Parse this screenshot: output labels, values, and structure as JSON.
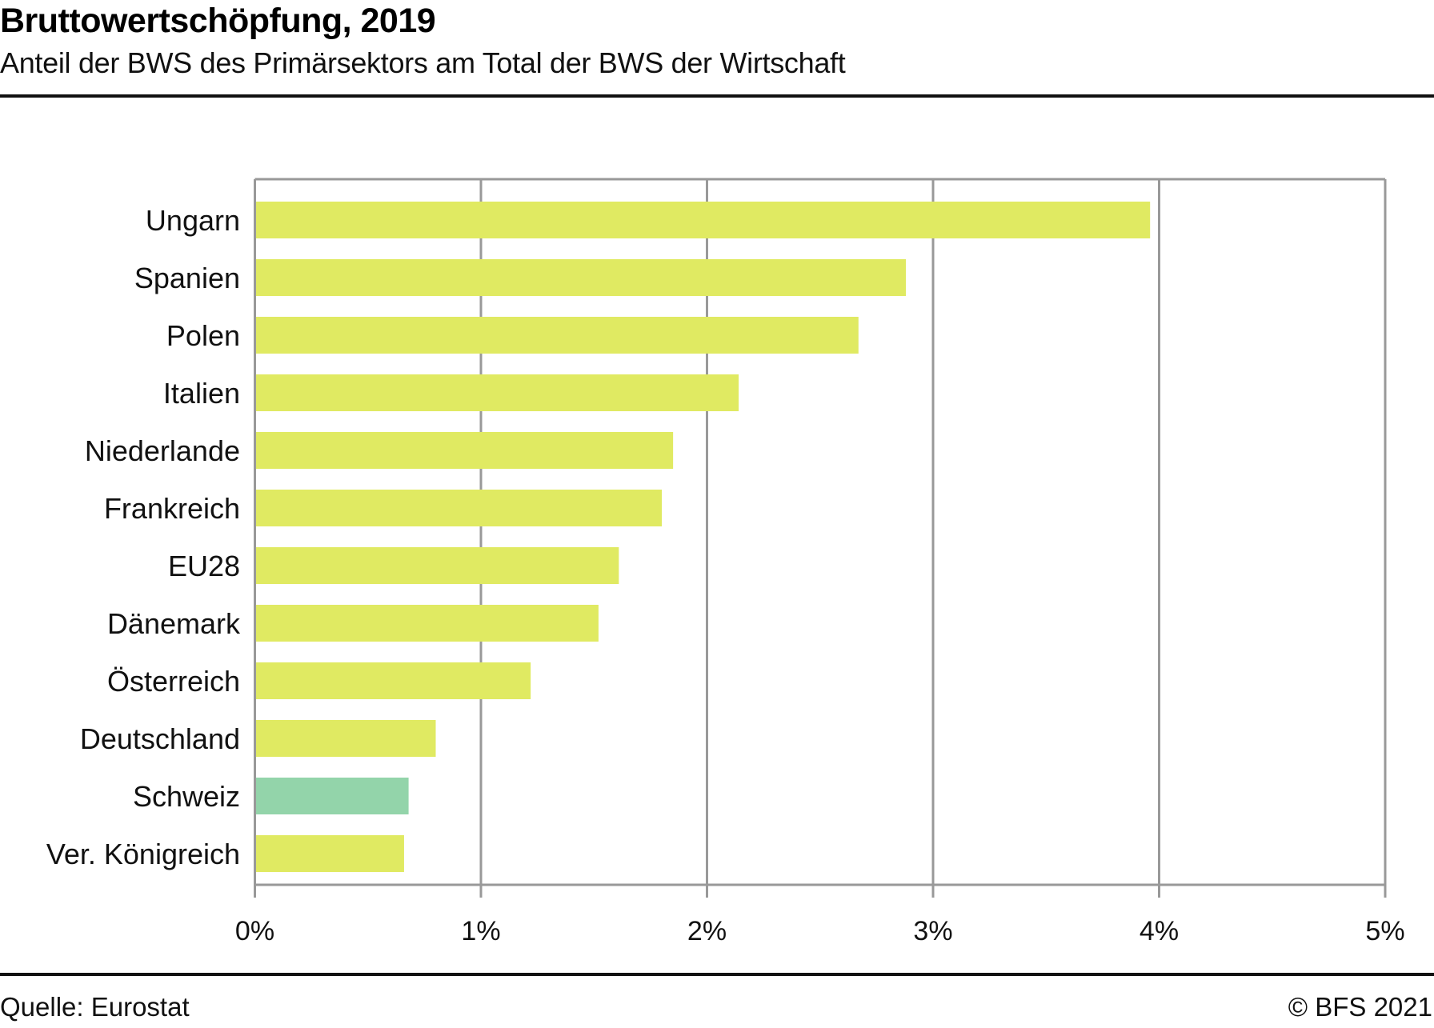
{
  "header": {
    "title": "Bruttowertschöpfung, 2019",
    "subtitle": "Anteil der BWS des Primärsektors am Total der BWS der Wirtschaft"
  },
  "footer": {
    "source": "Quelle: Eurostat",
    "copyright": "© BFS 2021"
  },
  "colors": {
    "bar": "#e0ea62",
    "highlight": "#93d4aa",
    "grid": "#999999"
  },
  "chart_data": {
    "type": "bar",
    "orientation": "horizontal",
    "title": "Bruttowertschöpfung, 2019",
    "subtitle": "Anteil der BWS des Primärsektors am Total der BWS der Wirtschaft",
    "xlabel": "",
    "ylabel": "",
    "xlim": [
      0,
      5
    ],
    "x_unit": "%",
    "x_ticks": [
      0,
      1,
      2,
      3,
      4,
      5
    ],
    "x_tick_labels": [
      "0%",
      "1%",
      "2%",
      "3%",
      "4%",
      "5%"
    ],
    "grid": true,
    "legend": "none",
    "categories": [
      "Ungarn",
      "Spanien",
      "Polen",
      "Italien",
      "Niederlande",
      "Frankreich",
      "EU28",
      "Dänemark",
      "Österreich",
      "Deutschland",
      "Schweiz",
      "Ver. Königreich"
    ],
    "values": [
      3.96,
      2.88,
      2.67,
      2.14,
      1.85,
      1.8,
      1.61,
      1.52,
      1.22,
      0.8,
      0.68,
      0.66
    ],
    "highlighted": [
      "Schweiz"
    ]
  }
}
